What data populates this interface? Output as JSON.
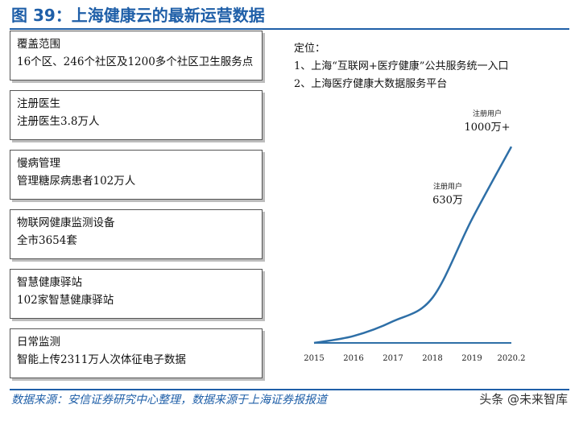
{
  "figure_title": "图 39：上海健康云的最新运营数据",
  "boxes": [
    {
      "title": "覆盖范围",
      "value": "16个区、246个社区及1200多个社区卫生服务点"
    },
    {
      "title": "注册医生",
      "value": "注册医生3.8万人"
    },
    {
      "title": "慢病管理",
      "value": "管理糖尿病患者102万人"
    },
    {
      "title": "物联网健康监测设备",
      "value": "全市3654套"
    },
    {
      "title": "智慧健康驿站",
      "value": "102家智慧健康驿站"
    },
    {
      "title": "日常监测",
      "value": "智能上传2311万人次体征电子数据"
    }
  ],
  "positioning": {
    "heading": "定位：",
    "items": [
      "1、上海“互联网+医疗健康”公共服务统一入口",
      "2、上海医疗健康大数据服务平台"
    ]
  },
  "chart_data": {
    "type": "line",
    "categories": [
      "2015",
      "2016",
      "2017",
      "2018",
      "2019",
      "2020.2"
    ],
    "series": [
      {
        "values": [
          0,
          35,
          110,
          230,
          630,
          1000
        ]
      },
      {
        "values": [
          0,
          0,
          0,
          0,
          0,
          0
        ]
      }
    ],
    "annotations": [
      {
        "label": "注册用户",
        "value": "630万",
        "x": "2019",
        "y": 630
      },
      {
        "label": "注册用户",
        "value": "1000万+",
        "x": "2020.2",
        "y": 1000
      }
    ],
    "ylim": [
      0,
      1050
    ],
    "grid": false,
    "colors": {
      "line": "#2e6fa7",
      "baseline": "#2e6fa7"
    }
  },
  "source": "数据来源：安信证券研究中心整理，数据来源于上海证券报报道",
  "watermark": "头条 @未来智库"
}
